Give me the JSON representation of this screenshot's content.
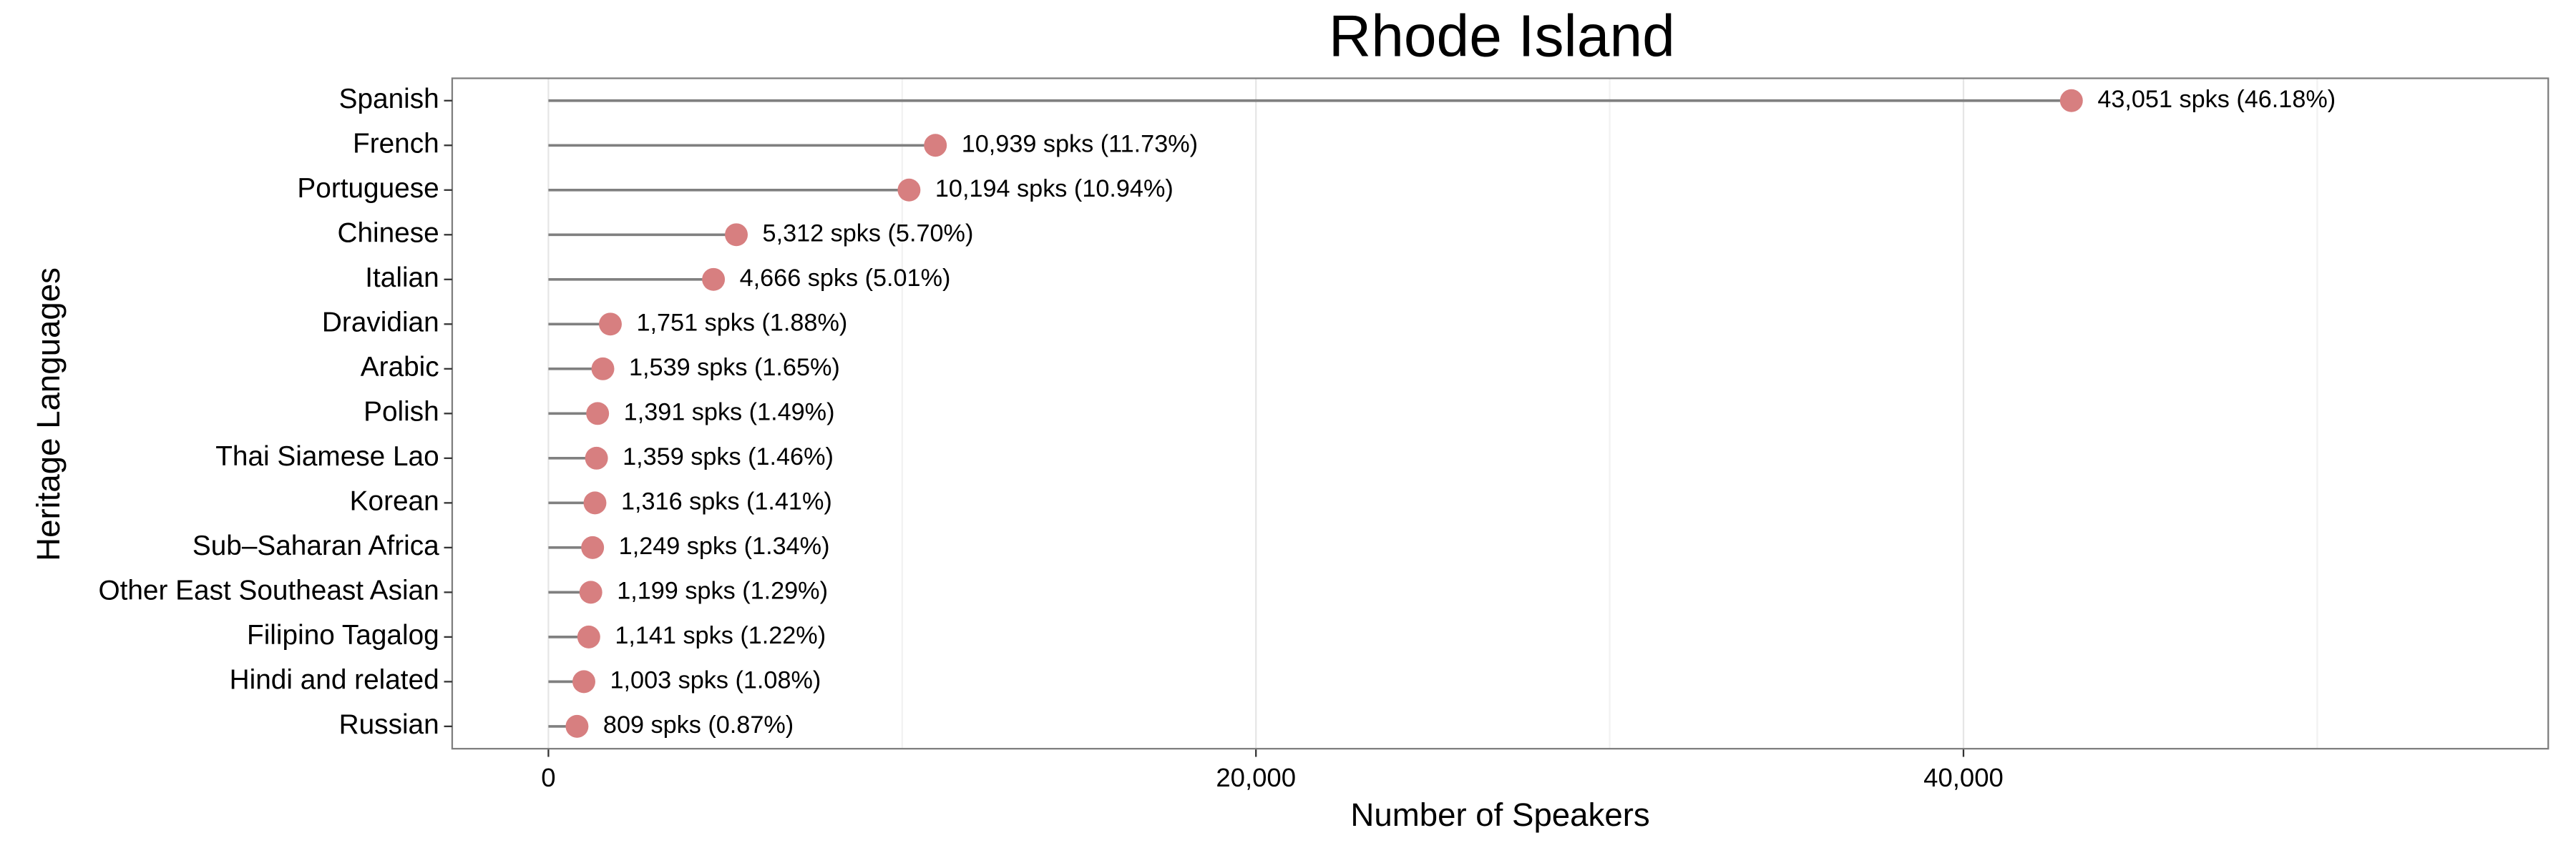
{
  "chart_data": {
    "type": "lollipop",
    "title": "Rhode Island",
    "x_label": "Number of Speakers",
    "y_label": "Heritage Languages",
    "categories": [
      "Spanish",
      "French",
      "Portuguese",
      "Chinese",
      "Italian",
      "Dravidian",
      "Arabic",
      "Polish",
      "Thai Siamese Lao",
      "Korean",
      "Sub–Saharan Africa",
      "Other East Southeast Asian",
      "Filipino Tagalog",
      "Hindi and related",
      "Russian"
    ],
    "values": [
      43051,
      10939,
      10194,
      5312,
      4666,
      1751,
      1539,
      1391,
      1359,
      1316,
      1249,
      1199,
      1141,
      1003,
      809
    ],
    "value_labels": [
      "43,051 spks (46.18%)",
      "10,939 spks (11.73%)",
      "10,194 spks (10.94%)",
      "5,312 spks (5.70%)",
      "4,666 spks (5.01%)",
      "1,751 spks (1.88%)",
      "1,539 spks (1.65%)",
      "1,391 spks (1.49%)",
      "1,359 spks (1.46%)",
      "1,316 spks (1.41%)",
      "1,249 spks (1.34%)",
      "1,199 spks (1.29%)",
      "1,141 spks (1.22%)",
      "1,003 spks (1.08%)",
      "809 spks (0.87%)"
    ],
    "color": "#d77f80",
    "stem_color": "#808080",
    "xlim": [
      -2720,
      56530
    ],
    "xticks": [
      0,
      {
        "value": 20000,
        "label": "20,000"
      },
      {
        "value": 40000,
        "label": "40,000"
      }
    ],
    "x_minor_ticks": [
      10000,
      30000,
      50000
    ],
    "grid": true
  }
}
